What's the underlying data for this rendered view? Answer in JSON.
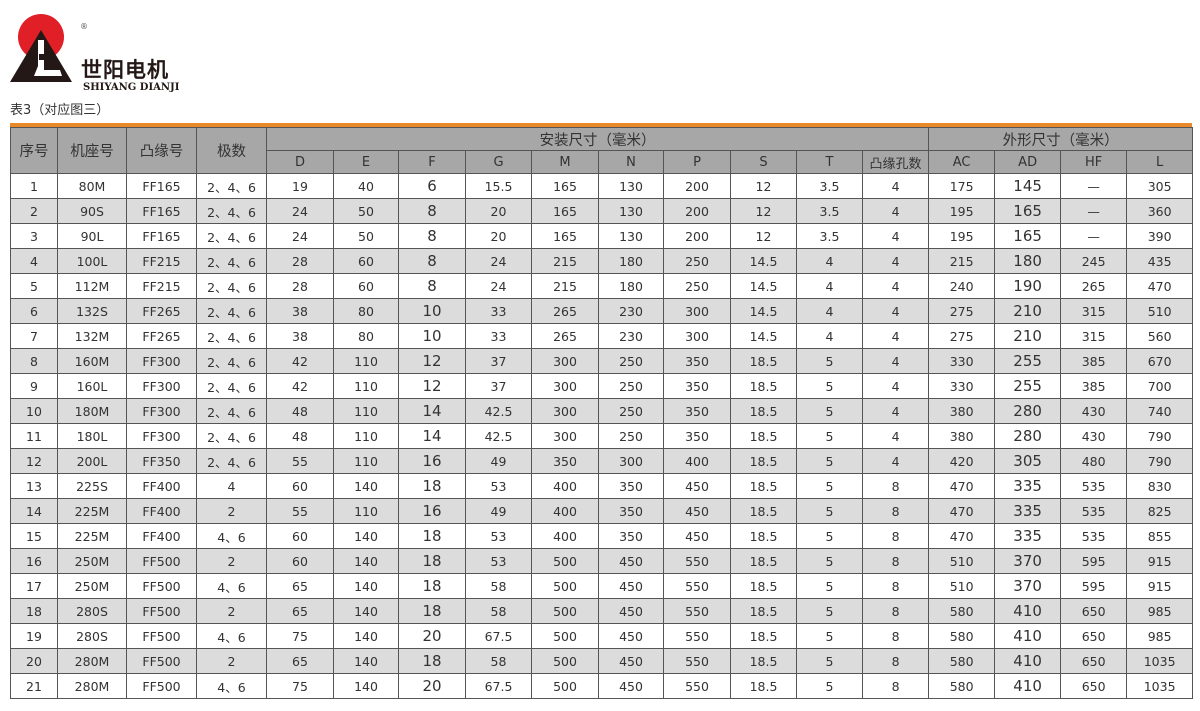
{
  "brand": {
    "name_cn": "世阳电机",
    "name_en": "SHIYANG DIANJI",
    "registered": "®",
    "colors": {
      "sun": "#e01f26",
      "mark": "#231815"
    }
  },
  "caption": "表3（对应图三）",
  "accent": "#e98a2a",
  "table": {
    "group_headers": {
      "install": "安装尺寸（毫米）",
      "outline": "外形尺寸（毫米）"
    },
    "fixed_headers": [
      "序号",
      "机座号",
      "凸缘号",
      "极数"
    ],
    "install_cols": [
      "D",
      "E",
      "F",
      "G",
      "M",
      "N",
      "P",
      "S",
      "T",
      "凸缘孔数"
    ],
    "outline_cols": [
      "AC",
      "AD",
      "HF",
      "L"
    ],
    "rows": [
      [
        "1",
        "80M",
        "FF165",
        "2、4、6",
        "19",
        "40",
        "6",
        "15.5",
        "165",
        "130",
        "200",
        "12",
        "3.5",
        "4",
        "175",
        "145",
        "—",
        "305"
      ],
      [
        "2",
        "90S",
        "FF165",
        "2、4、6",
        "24",
        "50",
        "8",
        "20",
        "165",
        "130",
        "200",
        "12",
        "3.5",
        "4",
        "195",
        "165",
        "—",
        "360"
      ],
      [
        "3",
        "90L",
        "FF165",
        "2、4、6",
        "24",
        "50",
        "8",
        "20",
        "165",
        "130",
        "200",
        "12",
        "3.5",
        "4",
        "195",
        "165",
        "—",
        "390"
      ],
      [
        "4",
        "100L",
        "FF215",
        "2、4、6",
        "28",
        "60",
        "8",
        "24",
        "215",
        "180",
        "250",
        "14.5",
        "4",
        "4",
        "215",
        "180",
        "245",
        "435"
      ],
      [
        "5",
        "112M",
        "FF215",
        "2、4、6",
        "28",
        "60",
        "8",
        "24",
        "215",
        "180",
        "250",
        "14.5",
        "4",
        "4",
        "240",
        "190",
        "265",
        "470"
      ],
      [
        "6",
        "132S",
        "FF265",
        "2、4、6",
        "38",
        "80",
        "10",
        "33",
        "265",
        "230",
        "300",
        "14.5",
        "4",
        "4",
        "275",
        "210",
        "315",
        "510"
      ],
      [
        "7",
        "132M",
        "FF265",
        "2、4、6",
        "38",
        "80",
        "10",
        "33",
        "265",
        "230",
        "300",
        "14.5",
        "4",
        "4",
        "275",
        "210",
        "315",
        "560"
      ],
      [
        "8",
        "160M",
        "FF300",
        "2、4、6",
        "42",
        "110",
        "12",
        "37",
        "300",
        "250",
        "350",
        "18.5",
        "5",
        "4",
        "330",
        "255",
        "385",
        "670"
      ],
      [
        "9",
        "160L",
        "FF300",
        "2、4、6",
        "42",
        "110",
        "12",
        "37",
        "300",
        "250",
        "350",
        "18.5",
        "5",
        "4",
        "330",
        "255",
        "385",
        "700"
      ],
      [
        "10",
        "180M",
        "FF300",
        "2、4、6",
        "48",
        "110",
        "14",
        "42.5",
        "300",
        "250",
        "350",
        "18.5",
        "5",
        "4",
        "380",
        "280",
        "430",
        "740"
      ],
      [
        "11",
        "180L",
        "FF300",
        "2、4、6",
        "48",
        "110",
        "14",
        "42.5",
        "300",
        "250",
        "350",
        "18.5",
        "5",
        "4",
        "380",
        "280",
        "430",
        "790"
      ],
      [
        "12",
        "200L",
        "FF350",
        "2、4、6",
        "55",
        "110",
        "16",
        "49",
        "350",
        "300",
        "400",
        "18.5",
        "5",
        "4",
        "420",
        "305",
        "480",
        "790"
      ],
      [
        "13",
        "225S",
        "FF400",
        "4",
        "60",
        "140",
        "18",
        "53",
        "400",
        "350",
        "450",
        "18.5",
        "5",
        "8",
        "470",
        "335",
        "535",
        "830"
      ],
      [
        "14",
        "225M",
        "FF400",
        "2",
        "55",
        "110",
        "16",
        "49",
        "400",
        "350",
        "450",
        "18.5",
        "5",
        "8",
        "470",
        "335",
        "535",
        "825"
      ],
      [
        "15",
        "225M",
        "FF400",
        "4、6",
        "60",
        "140",
        "18",
        "53",
        "400",
        "350",
        "450",
        "18.5",
        "5",
        "8",
        "470",
        "335",
        "535",
        "855"
      ],
      [
        "16",
        "250M",
        "FF500",
        "2",
        "60",
        "140",
        "18",
        "53",
        "500",
        "450",
        "550",
        "18.5",
        "5",
        "8",
        "510",
        "370",
        "595",
        "915"
      ],
      [
        "17",
        "250M",
        "FF500",
        "4、6",
        "65",
        "140",
        "18",
        "58",
        "500",
        "450",
        "550",
        "18.5",
        "5",
        "8",
        "510",
        "370",
        "595",
        "915"
      ],
      [
        "18",
        "280S",
        "FF500",
        "2",
        "65",
        "140",
        "18",
        "58",
        "500",
        "450",
        "550",
        "18.5",
        "5",
        "8",
        "580",
        "410",
        "650",
        "985"
      ],
      [
        "19",
        "280S",
        "FF500",
        "4、6",
        "75",
        "140",
        "20",
        "67.5",
        "500",
        "450",
        "550",
        "18.5",
        "5",
        "8",
        "580",
        "410",
        "650",
        "985"
      ],
      [
        "20",
        "280M",
        "FF500",
        "2",
        "65",
        "140",
        "18",
        "58",
        "500",
        "450",
        "550",
        "18.5",
        "5",
        "8",
        "580",
        "410",
        "650",
        "1035"
      ],
      [
        "21",
        "280M",
        "FF500",
        "4、6",
        "75",
        "140",
        "20",
        "67.5",
        "500",
        "450",
        "550",
        "18.5",
        "5",
        "8",
        "580",
        "410",
        "650",
        "1035"
      ]
    ]
  }
}
